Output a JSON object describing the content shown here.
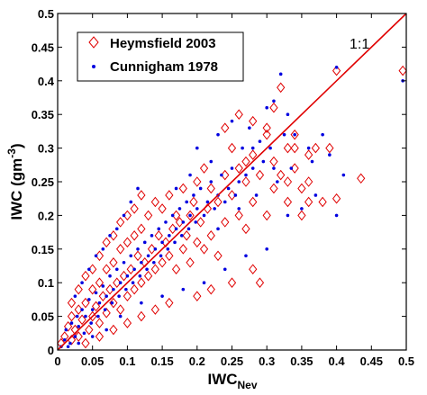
{
  "chart_data": {
    "type": "scatter",
    "xlabel": {
      "base": "IWC",
      "sub": "Nev"
    },
    "ylabel": {
      "base": "IWC (gm",
      "sup": "-3",
      "close": ")"
    },
    "xlim": [
      0,
      0.5
    ],
    "ylim": [
      0,
      0.5
    ],
    "x_ticks": [
      "0",
      "0.05",
      "0.1",
      "0.15",
      "0.2",
      "0.25",
      "0.3",
      "0.35",
      "0.4",
      "0.45",
      "0.5"
    ],
    "y_ticks": [
      "0",
      "0.05",
      "0.1",
      "0.15",
      "0.2",
      "0.25",
      "0.3",
      "0.35",
      "0.4",
      "0.45",
      "0.5"
    ],
    "legend_position": "top-left",
    "reference_line": {
      "label": "1:1",
      "from": [
        0,
        0
      ],
      "to": [
        0.5,
        0.5
      ],
      "color": "#e00000"
    },
    "series": [
      {
        "name": "Heymsfield 2003",
        "marker": "diamond-open",
        "color": "#e00000",
        "points": [
          [
            0.005,
            0.01
          ],
          [
            0.01,
            0.02
          ],
          [
            0.015,
            0.035
          ],
          [
            0.02,
            0.015
          ],
          [
            0.02,
            0.05
          ],
          [
            0.025,
            0.03
          ],
          [
            0.03,
            0.06
          ],
          [
            0.03,
            0.02
          ],
          [
            0.035,
            0.045
          ],
          [
            0.04,
            0.07
          ],
          [
            0.045,
            0.03
          ],
          [
            0.05,
            0.09
          ],
          [
            0.05,
            0.05
          ],
          [
            0.055,
            0.065
          ],
          [
            0.06,
            0.1
          ],
          [
            0.06,
            0.04
          ],
          [
            0.065,
            0.08
          ],
          [
            0.07,
            0.12
          ],
          [
            0.07,
            0.055
          ],
          [
            0.075,
            0.09
          ],
          [
            0.08,
            0.13
          ],
          [
            0.08,
            0.07
          ],
          [
            0.085,
            0.1
          ],
          [
            0.09,
            0.15
          ],
          [
            0.09,
            0.06
          ],
          [
            0.095,
            0.11
          ],
          [
            0.1,
            0.16
          ],
          [
            0.1,
            0.08
          ],
          [
            0.105,
            0.12
          ],
          [
            0.11,
            0.17
          ],
          [
            0.11,
            0.09
          ],
          [
            0.115,
            0.14
          ],
          [
            0.12,
            0.18
          ],
          [
            0.12,
            0.1
          ],
          [
            0.125,
            0.13
          ],
          [
            0.13,
            0.2
          ],
          [
            0.13,
            0.11
          ],
          [
            0.135,
            0.15
          ],
          [
            0.14,
            0.22
          ],
          [
            0.14,
            0.12
          ],
          [
            0.145,
            0.17
          ],
          [
            0.15,
            0.21
          ],
          [
            0.15,
            0.13
          ],
          [
            0.155,
            0.16
          ],
          [
            0.16,
            0.23
          ],
          [
            0.16,
            0.14
          ],
          [
            0.165,
            0.18
          ],
          [
            0.17,
            0.2
          ],
          [
            0.17,
            0.12
          ],
          [
            0.175,
            0.19
          ],
          [
            0.18,
            0.24
          ],
          [
            0.18,
            0.15
          ],
          [
            0.185,
            0.17
          ],
          [
            0.19,
            0.2
          ],
          [
            0.19,
            0.13
          ],
          [
            0.195,
            0.22
          ],
          [
            0.2,
            0.25
          ],
          [
            0.2,
            0.16
          ],
          [
            0.205,
            0.19
          ],
          [
            0.21,
            0.27
          ],
          [
            0.21,
            0.15
          ],
          [
            0.215,
            0.21
          ],
          [
            0.22,
            0.24
          ],
          [
            0.22,
            0.17
          ],
          [
            0.23,
            0.22
          ],
          [
            0.23,
            0.14
          ],
          [
            0.24,
            0.26
          ],
          [
            0.24,
            0.19
          ],
          [
            0.25,
            0.23
          ],
          [
            0.25,
            0.3
          ],
          [
            0.26,
            0.2
          ],
          [
            0.26,
            0.27
          ],
          [
            0.27,
            0.25
          ],
          [
            0.27,
            0.18
          ],
          [
            0.28,
            0.29
          ],
          [
            0.28,
            0.22
          ],
          [
            0.29,
            0.26
          ],
          [
            0.29,
            0.1
          ],
          [
            0.3,
            0.33
          ],
          [
            0.3,
            0.2
          ],
          [
            0.31,
            0.28
          ],
          [
            0.31,
            0.24
          ],
          [
            0.32,
            0.39
          ],
          [
            0.32,
            0.26
          ],
          [
            0.33,
            0.3
          ],
          [
            0.33,
            0.22
          ],
          [
            0.34,
            0.32
          ],
          [
            0.34,
            0.27
          ],
          [
            0.35,
            0.24
          ],
          [
            0.35,
            0.2
          ],
          [
            0.36,
            0.29
          ],
          [
            0.36,
            0.25
          ],
          [
            0.37,
            0.3
          ],
          [
            0.38,
            0.22
          ],
          [
            0.39,
            0.3
          ],
          [
            0.4,
            0.415
          ],
          [
            0.4,
            0.225
          ],
          [
            0.435,
            0.255
          ],
          [
            0.495,
            0.415
          ],
          [
            0.28,
            0.12
          ],
          [
            0.25,
            0.1
          ],
          [
            0.22,
            0.09
          ],
          [
            0.2,
            0.08
          ],
          [
            0.16,
            0.07
          ],
          [
            0.14,
            0.06
          ],
          [
            0.12,
            0.05
          ],
          [
            0.1,
            0.04
          ],
          [
            0.08,
            0.03
          ],
          [
            0.06,
            0.02
          ],
          [
            0.04,
            0.01
          ],
          [
            0.02,
            0.07
          ],
          [
            0.03,
            0.09
          ],
          [
            0.04,
            0.11
          ],
          [
            0.05,
            0.12
          ],
          [
            0.06,
            0.14
          ],
          [
            0.07,
            0.16
          ],
          [
            0.08,
            0.17
          ],
          [
            0.09,
            0.19
          ],
          [
            0.1,
            0.2
          ],
          [
            0.11,
            0.21
          ],
          [
            0.12,
            0.23
          ],
          [
            0.26,
            0.35
          ],
          [
            0.28,
            0.34
          ],
          [
            0.34,
            0.3
          ],
          [
            0.3,
            0.32
          ],
          [
            0.33,
            0.25
          ],
          [
            0.36,
            0.22
          ],
          [
            0.24,
            0.33
          ],
          [
            0.27,
            0.28
          ],
          [
            0.31,
            0.36
          ]
        ]
      },
      {
        "name": "Cunnigham 1978",
        "marker": "dot",
        "color": "#0000e0",
        "points": [
          [
            0.005,
            0.005
          ],
          [
            0.01,
            0.015
          ],
          [
            0.012,
            0.03
          ],
          [
            0.018,
            0.01
          ],
          [
            0.02,
            0.04
          ],
          [
            0.025,
            0.02
          ],
          [
            0.028,
            0.05
          ],
          [
            0.03,
            0.035
          ],
          [
            0.035,
            0.06
          ],
          [
            0.038,
            0.025
          ],
          [
            0.04,
            0.05
          ],
          [
            0.045,
            0.075
          ],
          [
            0.048,
            0.04
          ],
          [
            0.05,
            0.06
          ],
          [
            0.055,
            0.085
          ],
          [
            0.058,
            0.05
          ],
          [
            0.06,
            0.07
          ],
          [
            0.065,
            0.095
          ],
          [
            0.068,
            0.06
          ],
          [
            0.07,
            0.08
          ],
          [
            0.075,
            0.11
          ],
          [
            0.078,
            0.07
          ],
          [
            0.08,
            0.09
          ],
          [
            0.085,
            0.12
          ],
          [
            0.088,
            0.08
          ],
          [
            0.09,
            0.1
          ],
          [
            0.095,
            0.13
          ],
          [
            0.098,
            0.09
          ],
          [
            0.1,
            0.11
          ],
          [
            0.105,
            0.14
          ],
          [
            0.108,
            0.1
          ],
          [
            0.11,
            0.12
          ],
          [
            0.115,
            0.15
          ],
          [
            0.118,
            0.11
          ],
          [
            0.12,
            0.13
          ],
          [
            0.125,
            0.16
          ],
          [
            0.128,
            0.12
          ],
          [
            0.13,
            0.14
          ],
          [
            0.135,
            0.17
          ],
          [
            0.138,
            0.13
          ],
          [
            0.14,
            0.15
          ],
          [
            0.145,
            0.18
          ],
          [
            0.148,
            0.14
          ],
          [
            0.15,
            0.16
          ],
          [
            0.155,
            0.19
          ],
          [
            0.158,
            0.15
          ],
          [
            0.16,
            0.17
          ],
          [
            0.165,
            0.2
          ],
          [
            0.168,
            0.16
          ],
          [
            0.17,
            0.18
          ],
          [
            0.175,
            0.21
          ],
          [
            0.178,
            0.17
          ],
          [
            0.18,
            0.19
          ],
          [
            0.185,
            0.22
          ],
          [
            0.188,
            0.18
          ],
          [
            0.19,
            0.2
          ],
          [
            0.195,
            0.23
          ],
          [
            0.198,
            0.19
          ],
          [
            0.2,
            0.21
          ],
          [
            0.205,
            0.24
          ],
          [
            0.21,
            0.2
          ],
          [
            0.215,
            0.22
          ],
          [
            0.22,
            0.25
          ],
          [
            0.225,
            0.21
          ],
          [
            0.23,
            0.23
          ],
          [
            0.235,
            0.26
          ],
          [
            0.24,
            0.22
          ],
          [
            0.245,
            0.24
          ],
          [
            0.25,
            0.27
          ],
          [
            0.255,
            0.23
          ],
          [
            0.26,
            0.25
          ],
          [
            0.265,
            0.3
          ],
          [
            0.27,
            0.26
          ],
          [
            0.275,
            0.33
          ],
          [
            0.28,
            0.27
          ],
          [
            0.285,
            0.23
          ],
          [
            0.29,
            0.31
          ],
          [
            0.295,
            0.28
          ],
          [
            0.3,
            0.36
          ],
          [
            0.305,
            0.3
          ],
          [
            0.31,
            0.37
          ],
          [
            0.315,
            0.25
          ],
          [
            0.32,
            0.41
          ],
          [
            0.325,
            0.32
          ],
          [
            0.33,
            0.35
          ],
          [
            0.335,
            0.27
          ],
          [
            0.34,
            0.32
          ],
          [
            0.35,
            0.21
          ],
          [
            0.36,
            0.3
          ],
          [
            0.365,
            0.28
          ],
          [
            0.37,
            0.23
          ],
          [
            0.38,
            0.32
          ],
          [
            0.39,
            0.29
          ],
          [
            0.4,
            0.42
          ],
          [
            0.4,
            0.2
          ],
          [
            0.41,
            0.26
          ],
          [
            0.495,
            0.4
          ],
          [
            0.33,
            0.2
          ],
          [
            0.3,
            0.15
          ],
          [
            0.27,
            0.14
          ],
          [
            0.24,
            0.12
          ],
          [
            0.21,
            0.1
          ],
          [
            0.18,
            0.09
          ],
          [
            0.15,
            0.08
          ],
          [
            0.12,
            0.07
          ],
          [
            0.09,
            0.05
          ],
          [
            0.07,
            0.03
          ],
          [
            0.05,
            0.02
          ],
          [
            0.03,
            0.01
          ],
          [
            0.015,
            0.005
          ],
          [
            0.025,
            0.08
          ],
          [
            0.035,
            0.1
          ],
          [
            0.045,
            0.12
          ],
          [
            0.055,
            0.14
          ],
          [
            0.065,
            0.15
          ],
          [
            0.075,
            0.17
          ],
          [
            0.085,
            0.18
          ],
          [
            0.095,
            0.2
          ],
          [
            0.105,
            0.22
          ],
          [
            0.115,
            0.24
          ],
          [
            0.2,
            0.3
          ],
          [
            0.23,
            0.32
          ],
          [
            0.25,
            0.34
          ],
          [
            0.22,
            0.28
          ],
          [
            0.19,
            0.26
          ],
          [
            0.17,
            0.24
          ],
          [
            0.28,
            0.3
          ],
          [
            0.31,
            0.27
          ],
          [
            0.26,
            0.21
          ],
          [
            0.23,
            0.18
          ]
        ]
      }
    ]
  }
}
